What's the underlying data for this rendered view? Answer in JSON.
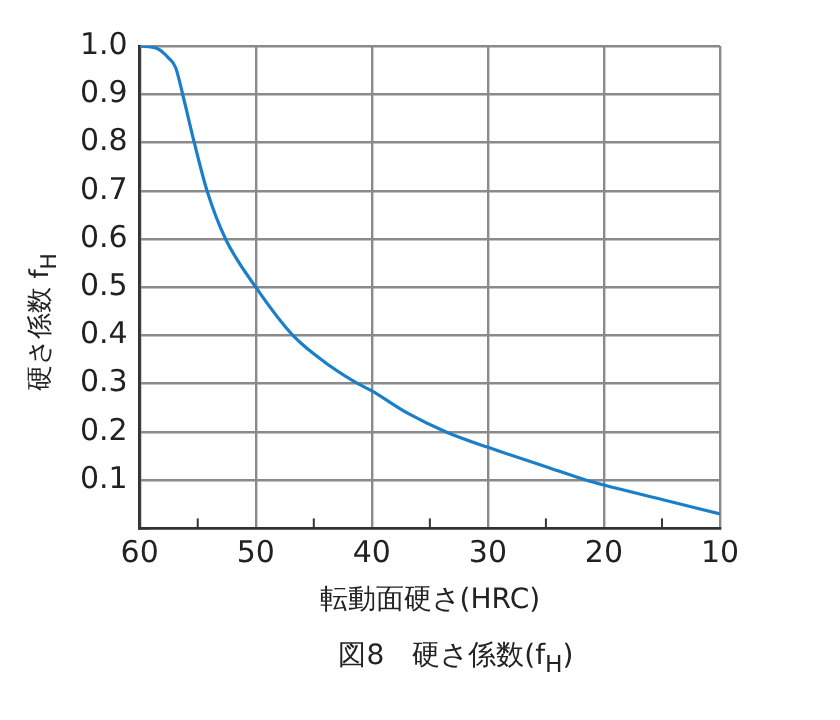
{
  "chart_data": {
    "type": "line",
    "title": "図8　硬さ係数(f$_{H}$)",
    "xlabel": "転動面硬さ(HRC)",
    "ylabel": "硬さ係数 f$_{H}$",
    "x": [
      60,
      58.5,
      57.5,
      56.9,
      56.3,
      55.3,
      54.2,
      52.6,
      50,
      46.8,
      43.5,
      41.2,
      40,
      37,
      33.6,
      30,
      25,
      21.5,
      20,
      15,
      10
    ],
    "series": [
      {
        "color": "#1a7fc8",
        "values": [
          1.0,
          0.995,
          0.975,
          0.955,
          0.9,
          0.8,
          0.7,
          0.6,
          0.5,
          0.4,
          0.335,
          0.3,
          0.285,
          0.24,
          0.2,
          0.168,
          0.128,
          0.1,
          0.09,
          0.06,
          0.03
        ]
      }
    ],
    "xlim": [
      60,
      10
    ],
    "xticks": [
      60,
      {
        "value": 55,
        "label": null
      },
      50,
      {
        "value": 45,
        "label": null
      },
      40,
      {
        "value": 35,
        "label": null
      },
      30,
      {
        "value": 25,
        "label": null
      },
      20,
      {
        "value": 15,
        "label": null
      },
      10
    ],
    "ylim": [
      0,
      1
    ],
    "yticks": [
      {
        "value": 0,
        "label": null
      },
      0.1,
      0.2,
      0.3,
      0.4,
      0.5,
      0.6,
      0.7,
      0.8,
      0.9,
      {
        "value": 1,
        "label": "1.0"
      }
    ],
    "grid": true,
    "legend": false,
    "marker": "none",
    "line_style": "solid"
  }
}
